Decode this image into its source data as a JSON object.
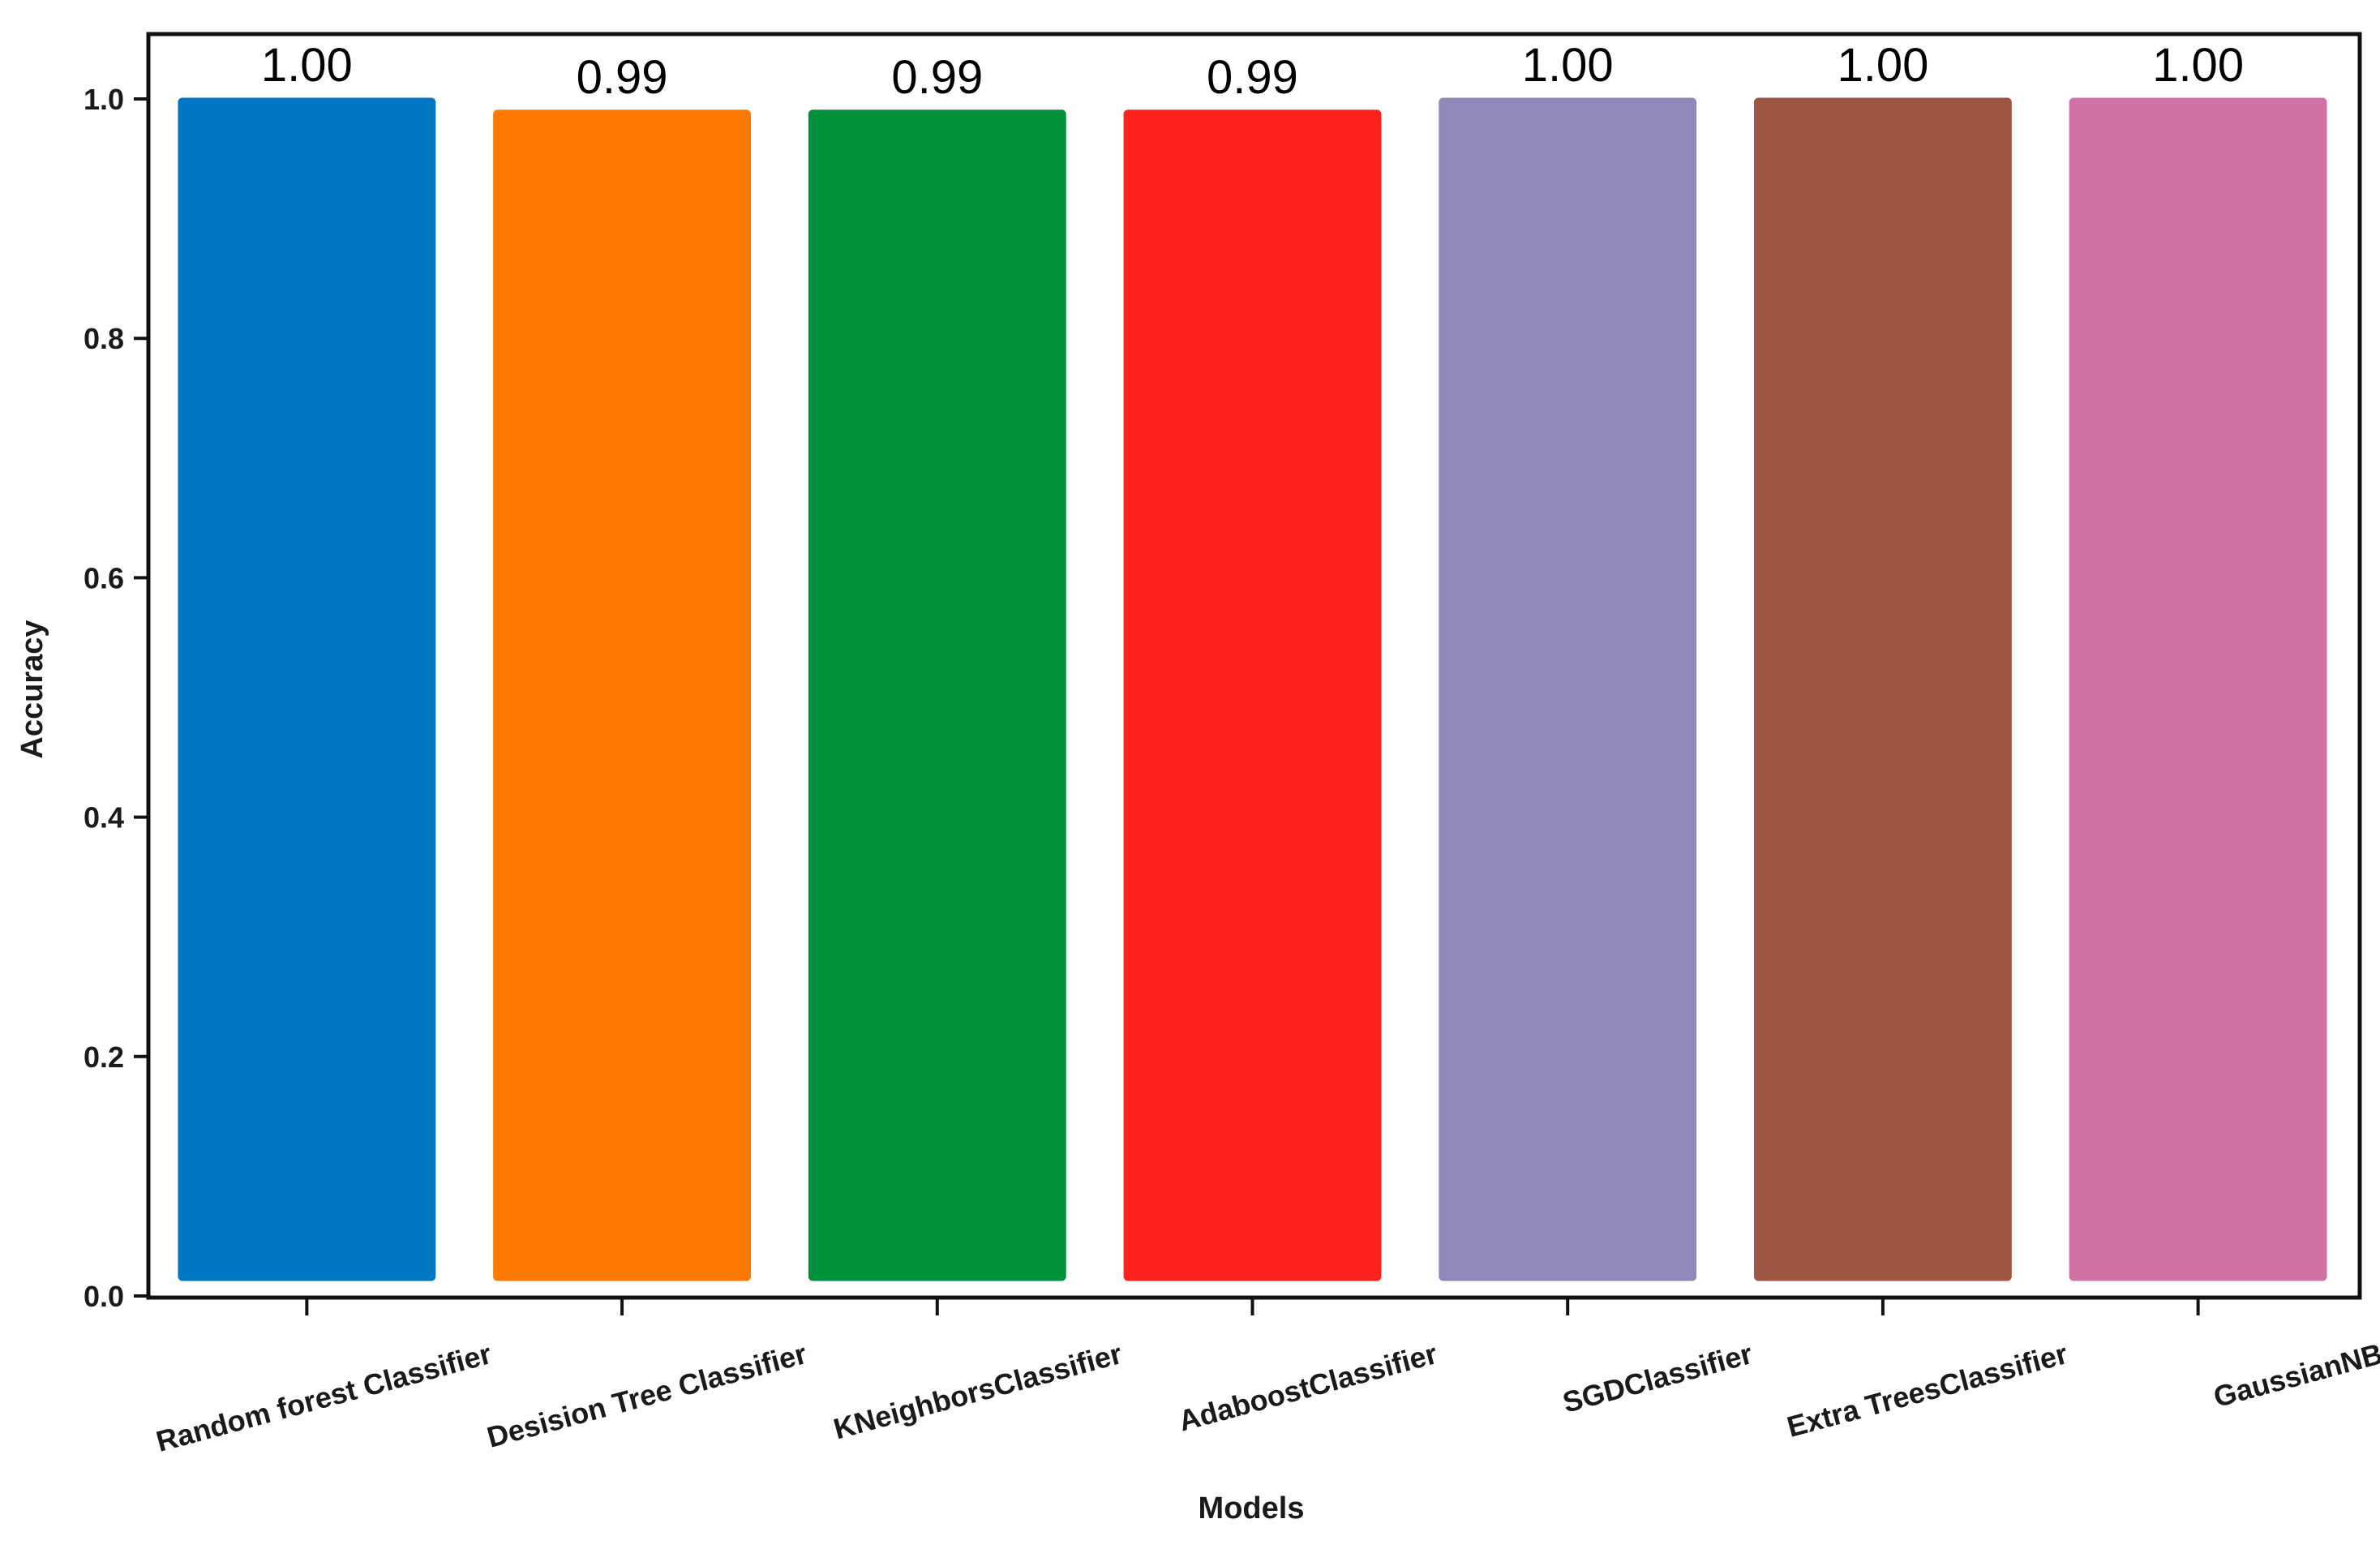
{
  "chart_data": {
    "type": "bar",
    "title": "",
    "xlabel": "Models",
    "ylabel": "Accuracy",
    "ylim": [
      0.0,
      1.05
    ],
    "yticks": [
      0.0,
      0.2,
      0.4,
      0.6,
      0.8,
      1.0
    ],
    "ytick_labels": [
      "0.0",
      "0.2",
      "0.4",
      "0.6",
      "0.8",
      "1.0"
    ],
    "categories": [
      "Random forest Classifier",
      "Desision Tree Classifier",
      "KNeighborsClassifier",
      "AdaboostClassifier",
      "SGDClassifier",
      "Extra TreesClassifier",
      "GaussianNB"
    ],
    "values": [
      1.0,
      0.99,
      0.99,
      0.99,
      1.0,
      1.0,
      1.0
    ],
    "data_labels": [
      "1.00",
      "0.99",
      "0.99",
      "0.99",
      "1.00",
      "1.00",
      "1.00"
    ],
    "colors": [
      "#0077c2",
      "#ff7a00",
      "#00913a",
      "#fb231b",
      "#9187b9",
      "#9e5643",
      "#d073a4"
    ],
    "grid": false,
    "legend": "none"
  }
}
